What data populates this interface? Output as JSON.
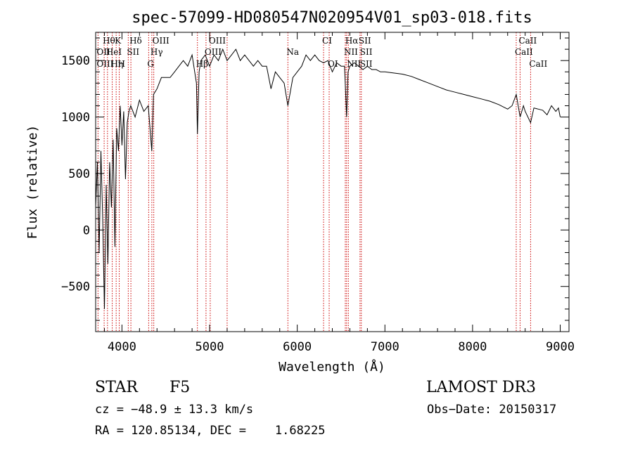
{
  "chart_data": {
    "type": "line",
    "title": "spec-57099-HD080547N020954V01_sp03-018.fits",
    "xlabel": "Wavelength (Å)",
    "ylabel": "Flux (relative)",
    "xlim": [
      3700,
      9100
    ],
    "ylim": [
      -900,
      1750
    ],
    "x_ticks": [
      4000,
      5000,
      6000,
      7000,
      8000,
      9000
    ],
    "x_tick_labels": [
      "4000",
      "5000",
      "6000",
      "7000",
      "8000",
      "9000"
    ],
    "y_ticks": [
      -500,
      0,
      500,
      1000,
      1500
    ],
    "y_tick_labels": [
      "−500",
      "0",
      "500",
      "1000",
      "1500"
    ],
    "grid": false,
    "series": [
      {
        "name": "flux",
        "x": [
          3700,
          3720,
          3740,
          3760,
          3780,
          3800,
          3820,
          3840,
          3860,
          3880,
          3900,
          3920,
          3940,
          3960,
          3980,
          4000,
          4020,
          4040,
          4060,
          4080,
          4100,
          4150,
          4200,
          4250,
          4300,
          4340,
          4360,
          4400,
          4450,
          4500,
          4550,
          4600,
          4650,
          4700,
          4750,
          4800,
          4850,
          4861,
          4880,
          4900,
          4950,
          5000,
          5050,
          5100,
          5150,
          5200,
          5250,
          5300,
          5350,
          5400,
          5450,
          5500,
          5550,
          5600,
          5650,
          5700,
          5750,
          5800,
          5850,
          5893,
          5950,
          6000,
          6050,
          6100,
          6150,
          6200,
          6250,
          6300,
          6350,
          6400,
          6450,
          6500,
          6540,
          6563,
          6580,
          6600,
          6650,
          6700,
          6750,
          6800,
          6850,
          6900,
          6950,
          7000,
          7100,
          7200,
          7300,
          7400,
          7500,
          7600,
          7700,
          7800,
          7900,
          8000,
          8100,
          8200,
          8300,
          8400,
          8450,
          8498,
          8542,
          8580,
          8600,
          8662,
          8700,
          8750,
          8800,
          8850,
          8900,
          8950,
          8980,
          9000
        ],
        "y": [
          200,
          600,
          -200,
          700,
          100,
          -700,
          400,
          -300,
          600,
          200,
          800,
          -150,
          900,
          700,
          1100,
          750,
          1050,
          450,
          950,
          1050,
          1100,
          1000,
          1150,
          1050,
          1100,
          700,
          1200,
          1250,
          1350,
          1350,
          1350,
          1400,
          1450,
          1500,
          1450,
          1550,
          1300,
          850,
          1400,
          1500,
          1550,
          1450,
          1550,
          1500,
          1600,
          1500,
          1550,
          1600,
          1500,
          1550,
          1500,
          1450,
          1500,
          1450,
          1450,
          1250,
          1400,
          1350,
          1300,
          1100,
          1350,
          1400,
          1450,
          1550,
          1500,
          1550,
          1500,
          1480,
          1500,
          1400,
          1480,
          1450,
          1450,
          1000,
          1400,
          1450,
          1480,
          1450,
          1420,
          1450,
          1420,
          1420,
          1400,
          1400,
          1390,
          1380,
          1360,
          1330,
          1300,
          1270,
          1240,
          1220,
          1200,
          1180,
          1160,
          1140,
          1110,
          1070,
          1100,
          1200,
          1000,
          1100,
          1050,
          950,
          1080,
          1070,
          1060,
          1020,
          1100,
          1050,
          1080,
          1000
        ]
      }
    ],
    "lines": [
      {
        "label": "Hθ",
        "x": 3797,
        "row": 1
      },
      {
        "label": "OII",
        "x": 3727,
        "row": 2
      },
      {
        "label": "OIII",
        "x": 3727,
        "row": 3
      },
      {
        "label": "HeI",
        "x": 3835,
        "row": 2
      },
      {
        "label": "Hη",
        "x": 3889,
        "row": 3
      },
      {
        "label": "K",
        "x": 3934,
        "row": 1
      },
      {
        "label": "SII",
        "x": 4072,
        "row": 2
      },
      {
        "label": "H",
        "x": 3969,
        "row": 3
      },
      {
        "label": "Hδ",
        "x": 4102,
        "row": 1
      },
      {
        "label": "OIII",
        "x": 4363,
        "row": 1
      },
      {
        "label": "Hγ",
        "x": 4341,
        "row": 2
      },
      {
        "label": "G",
        "x": 4305,
        "row": 3
      },
      {
        "label": "OIII",
        "x": 5007,
        "row": 1
      },
      {
        "label": "OIII",
        "x": 4959,
        "row": 2
      },
      {
        "label": "Hβ",
        "x": 4861,
        "row": 3
      },
      {
        "label": "Na",
        "x": 5893,
        "row": 2
      },
      {
        "label": "CI",
        "x": 6300,
        "row": 1
      },
      {
        "label": "OI",
        "x": 6364,
        "row": 3
      },
      {
        "label": "Hα",
        "x": 6563,
        "row": 1
      },
      {
        "label": "SII",
        "x": 6716,
        "row": 1
      },
      {
        "label": "NII",
        "x": 6548,
        "row": 2
      },
      {
        "label": "SII",
        "x": 6731,
        "row": 2
      },
      {
        "label": "NII",
        "x": 6583,
        "row": 3
      },
      {
        "label": "SII",
        "x": 6731,
        "row": 3
      },
      {
        "label": "CaII",
        "x": 8542,
        "row": 1
      },
      {
        "label": "CaII",
        "x": 8498,
        "row": 2
      },
      {
        "label": "CaII",
        "x": 8662,
        "row": 3
      }
    ],
    "line_positions": [
      3727,
      3797,
      3835,
      3889,
      3934,
      3969,
      4072,
      4102,
      4305,
      4341,
      4363,
      4861,
      4959,
      5007,
      5200,
      5893,
      6300,
      6364,
      6548,
      6563,
      6583,
      6716,
      6731,
      8498,
      8542,
      8662
    ],
    "colors": {
      "spectrum": "#000000",
      "line_marker": "#cc0000",
      "axis": "#000000"
    }
  },
  "info": {
    "object_type": "STAR",
    "subclass": "F5",
    "cz": "cz = −48.9 ± 13.3 km/s",
    "radec": "RA = 120.85134, DEC =    1.68225",
    "survey": "LAMOST DR3",
    "obs_date": "Obs−Date: 20150317"
  }
}
